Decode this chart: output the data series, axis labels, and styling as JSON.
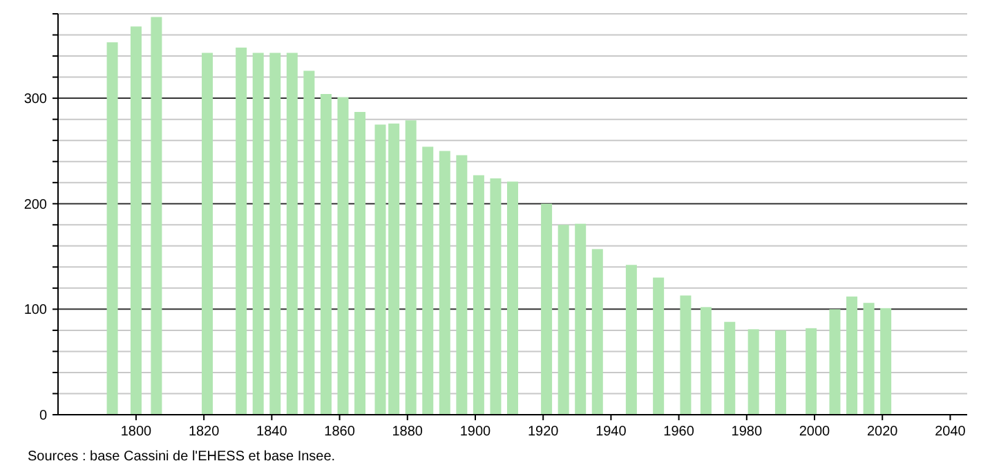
{
  "chart_data": {
    "type": "bar",
    "x": [
      1793,
      1800,
      1806,
      1821,
      1831,
      1836,
      1841,
      1846,
      1851,
      1856,
      1861,
      1866,
      1872,
      1876,
      1881,
      1886,
      1891,
      1896,
      1901,
      1906,
      1911,
      1921,
      1926,
      1931,
      1936,
      1946,
      1954,
      1962,
      1968,
      1975,
      1982,
      1990,
      1999,
      2006,
      2011,
      2016,
      2021
    ],
    "values": [
      353,
      368,
      377,
      343,
      348,
      343,
      343,
      343,
      326,
      304,
      301,
      287,
      275,
      276,
      279,
      254,
      250,
      246,
      227,
      224,
      221,
      200,
      180,
      181,
      157,
      142,
      130,
      113,
      102,
      88,
      81,
      80,
      82,
      100,
      112,
      106,
      101
    ],
    "color": "#b0e5b0",
    "xlim": [
      1777,
      2045
    ],
    "xticks": [
      1800,
      1820,
      1840,
      1860,
      1880,
      1900,
      1920,
      1940,
      1960,
      1980,
      2000,
      2020,
      2040
    ],
    "ylim": [
      0,
      380
    ],
    "yticks": [
      0,
      {
        "value": 20,
        "label": null
      },
      {
        "value": 40,
        "label": null
      },
      {
        "value": 60,
        "label": null
      },
      {
        "value": 80,
        "label": null
      },
      100,
      {
        "value": 120,
        "label": null
      },
      {
        "value": 140,
        "label": null
      },
      {
        "value": 160,
        "label": null
      },
      {
        "value": 180,
        "label": null
      },
      200,
      {
        "value": 220,
        "label": null
      },
      {
        "value": 240,
        "label": null
      },
      {
        "value": 260,
        "label": null
      },
      {
        "value": 280,
        "label": null
      },
      300,
      {
        "value": 320,
        "label": null
      },
      {
        "value": 340,
        "label": null
      },
      {
        "value": 360,
        "label": null
      },
      {
        "value": 380,
        "label": null
      }
    ],
    "grid": "y",
    "annotations": [
      "Sources : base Cassini de l'EHESS et base Insee."
    ]
  }
}
